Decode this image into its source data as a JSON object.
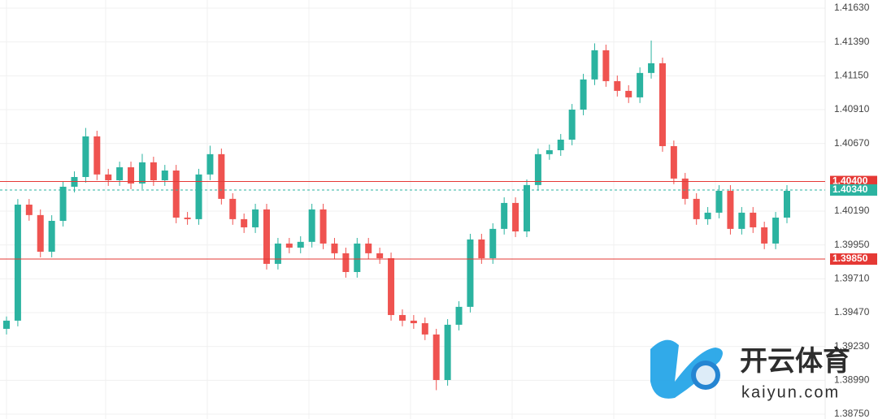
{
  "chart_data": {
    "type": "candlestick",
    "ylim": [
      1.3875,
      1.4163
    ],
    "yticks": [
      {
        "value": 1.4163,
        "label": "1.41630"
      },
      {
        "value": 1.4139,
        "label": "1.41390"
      },
      {
        "value": 1.4115,
        "label": "1.41150"
      },
      {
        "value": 1.4091,
        "label": "1.40910"
      },
      {
        "value": 1.4067,
        "label": "1.40670"
      },
      {
        "value": 1.4019,
        "label": "1.40190"
      },
      {
        "value": 1.3995,
        "label": "1.39950"
      },
      {
        "value": 1.3971,
        "label": "1.39710"
      },
      {
        "value": 1.3947,
        "label": "1.39470"
      },
      {
        "value": 1.3923,
        "label": "1.39230"
      },
      {
        "value": 1.3899,
        "label": "1.38990"
      },
      {
        "value": 1.3875,
        "label": "1.38750"
      }
    ],
    "grid": true,
    "up_color": "#2bb3a0",
    "down_color": "#ef5350",
    "open": [
      1.39355,
      1.39413,
      1.40236,
      1.40162,
      1.39902,
      1.40121,
      1.40363,
      1.40432,
      1.4072,
      1.4045,
      1.40409,
      1.40501,
      1.40386,
      1.40536,
      1.40409,
      1.40478,
      1.40144,
      1.40133,
      1.4045,
      1.40594,
      1.40277,
      1.40133,
      1.40075,
      1.40202,
      1.39816,
      1.3996,
      1.39931,
      1.39972,
      1.40202,
      1.3996,
      1.39891,
      1.39758,
      1.3996,
      1.39891,
      1.39856,
      1.39453,
      1.39413,
      1.39395,
      1.39315,
      1.38992,
      1.39384,
      1.39511,
      1.39989,
      1.39856,
      1.40064,
      1.40248,
      1.40046,
      1.40375,
      1.40594,
      1.40622,
      1.40697,
      1.4091,
      1.41124,
      1.41331,
      1.41112,
      1.41043,
      1.40997,
      1.4117,
      1.41239,
      1.40651,
      1.40421,
      1.40277,
      1.40133,
      1.40179,
      1.40334,
      1.40064,
      1.40179,
      1.40075,
      1.3996,
      1.40144
    ],
    "high": [
      1.39443,
      1.40276,
      1.40276,
      1.40202,
      1.40161,
      1.40403,
      1.40472,
      1.4078,
      1.4076,
      1.4049,
      1.40541,
      1.40541,
      1.40596,
      1.40576,
      1.40518,
      1.40518,
      1.40184,
      1.4049,
      1.40654,
      1.40634,
      1.40317,
      1.40173,
      1.40242,
      1.40242,
      1.4,
      1.4,
      1.40012,
      1.40242,
      1.40242,
      1.4,
      1.39931,
      1.4,
      1.4,
      1.39931,
      1.39896,
      1.39493,
      1.39453,
      1.39435,
      1.39355,
      1.39424,
      1.39551,
      1.40029,
      1.40029,
      1.40104,
      1.40288,
      1.40288,
      1.40415,
      1.40634,
      1.40662,
      1.40737,
      1.4095,
      1.41164,
      1.4138,
      1.41371,
      1.41152,
      1.41083,
      1.4121,
      1.414,
      1.41279,
      1.40691,
      1.40461,
      1.40317,
      1.40219,
      1.40374,
      1.40374,
      1.40219,
      1.40219,
      1.40115,
      1.40184,
      1.40374
    ],
    "low": [
      1.39315,
      1.39373,
      1.40122,
      1.39862,
      1.39862,
      1.40081,
      1.40323,
      1.40392,
      1.4041,
      1.40369,
      1.40369,
      1.40346,
      1.40346,
      1.40369,
      1.40369,
      1.40104,
      1.40093,
      1.40093,
      1.4041,
      1.40237,
      1.40093,
      1.40035,
      1.40035,
      1.39776,
      1.39776,
      1.39891,
      1.39891,
      1.39932,
      1.3992,
      1.39851,
      1.39718,
      1.39718,
      1.39851,
      1.39816,
      1.39413,
      1.39373,
      1.39355,
      1.39275,
      1.3892,
      1.38952,
      1.39344,
      1.39471,
      1.39816,
      1.39816,
      1.40024,
      1.40006,
      1.40006,
      1.40335,
      1.40554,
      1.40582,
      1.40657,
      1.4087,
      1.41084,
      1.41072,
      1.41003,
      1.40957,
      1.40957,
      1.4113,
      1.40611,
      1.40381,
      1.40237,
      1.40093,
      1.40093,
      1.40139,
      1.40024,
      1.40024,
      1.40035,
      1.3992,
      1.3992,
      1.40104
    ],
    "close": [
      1.39413,
      1.40236,
      1.40162,
      1.39902,
      1.40121,
      1.40363,
      1.40432,
      1.4072,
      1.4045,
      1.40409,
      1.40501,
      1.40386,
      1.40536,
      1.40409,
      1.40478,
      1.40144,
      1.40133,
      1.4045,
      1.40594,
      1.40277,
      1.40133,
      1.40075,
      1.40202,
      1.39816,
      1.3996,
      1.39931,
      1.39972,
      1.40202,
      1.3996,
      1.39891,
      1.39758,
      1.3996,
      1.39891,
      1.39856,
      1.39453,
      1.39413,
      1.39395,
      1.39315,
      1.38992,
      1.39384,
      1.39511,
      1.39989,
      1.39856,
      1.40064,
      1.40248,
      1.40046,
      1.40375,
      1.40594,
      1.40622,
      1.40697,
      1.4091,
      1.41124,
      1.41331,
      1.41112,
      1.41043,
      1.40997,
      1.4117,
      1.41239,
      1.40651,
      1.40421,
      1.40277,
      1.40133,
      1.40179,
      1.40334,
      1.40064,
      1.40179,
      1.40075,
      1.3996,
      1.40144,
      1.40334
    ],
    "price_lines": [
      {
        "value": 1.404,
        "label": "1.40400",
        "color": "#e53935",
        "style": "solid"
      },
      {
        "value": 1.3985,
        "label": "1.39850",
        "color": "#e53935",
        "style": "solid"
      },
      {
        "value": 1.4034,
        "label": "1.40340",
        "color": "#2bb3a0",
        "style": "dashed"
      }
    ]
  },
  "watermark": {
    "brand": "开云体育",
    "site": "kaiyun.com"
  }
}
